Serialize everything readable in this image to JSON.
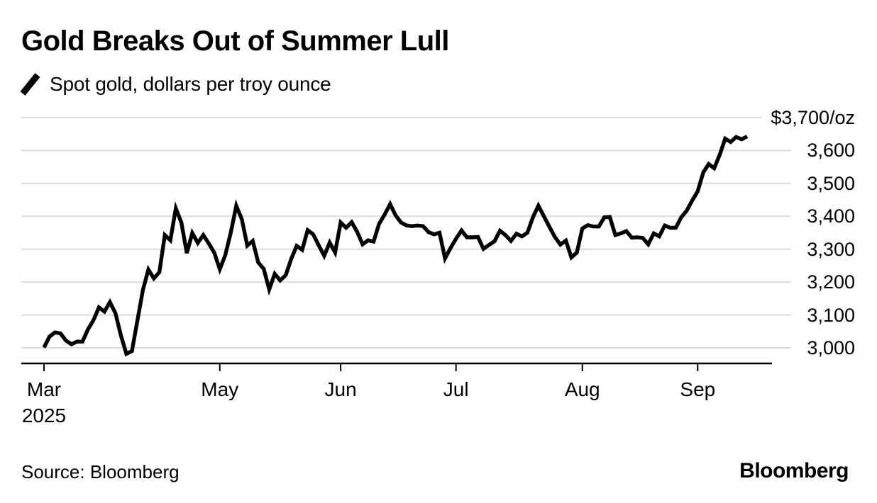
{
  "title": "Gold Breaks Out of Summer Lull",
  "legend": {
    "label": "Spot gold, dollars per troy ounce"
  },
  "source": "Source: Bloomberg",
  "brand": "Bloomberg",
  "colors": {
    "line": "#000000",
    "grid": "#dcdcdc",
    "axis": "#000000",
    "background": "#ffffff",
    "text": "#000000"
  },
  "chart_data": {
    "type": "line",
    "title": "Gold Breaks Out of Summer Lull",
    "series_label": "Spot gold, dollars per troy ounce",
    "unit": "dollars per troy ounce",
    "grid": "horizontal",
    "ylim": [
      2950,
      3700
    ],
    "yticks": [
      3000,
      3100,
      3200,
      3300,
      3400,
      3500,
      3600,
      3700
    ],
    "ytick_labels": [
      "3,000",
      "3,100",
      "3,200",
      "3,300",
      "3,400",
      "3,500",
      "3,600",
      "$3,700/oz"
    ],
    "xticks": [
      0,
      32,
      54,
      75,
      98,
      119
    ],
    "xtick_labels": [
      "Mar",
      "May",
      "Jun",
      "Jul",
      "Aug",
      "Sep"
    ],
    "xtick_sublabels": [
      "2025",
      "",
      "",
      "",
      "",
      ""
    ],
    "x": [
      "2025-03-17",
      "2025-03-18",
      "2025-03-19",
      "2025-03-20",
      "2025-03-21",
      "2025-03-24",
      "2025-03-25",
      "2025-03-26",
      "2025-03-27",
      "2025-03-28",
      "2025-03-31",
      "2025-04-01",
      "2025-04-02",
      "2025-04-03",
      "2025-04-04",
      "2025-04-07",
      "2025-04-08",
      "2025-04-09",
      "2025-04-10",
      "2025-04-11",
      "2025-04-14",
      "2025-04-15",
      "2025-04-16",
      "2025-04-17",
      "2025-04-21",
      "2025-04-22",
      "2025-04-23",
      "2025-04-24",
      "2025-04-25",
      "2025-04-28",
      "2025-04-29",
      "2025-04-30",
      "2025-05-01",
      "2025-05-02",
      "2025-05-05",
      "2025-05-06",
      "2025-05-07",
      "2025-05-08",
      "2025-05-09",
      "2025-05-12",
      "2025-05-13",
      "2025-05-14",
      "2025-05-15",
      "2025-05-16",
      "2025-05-19",
      "2025-05-20",
      "2025-05-21",
      "2025-05-22",
      "2025-05-23",
      "2025-05-26",
      "2025-05-27",
      "2025-05-28",
      "2025-05-29",
      "2025-05-30",
      "2025-06-02",
      "2025-06-03",
      "2025-06-04",
      "2025-06-05",
      "2025-06-06",
      "2025-06-09",
      "2025-06-10",
      "2025-06-11",
      "2025-06-12",
      "2025-06-13",
      "2025-06-16",
      "2025-06-17",
      "2025-06-18",
      "2025-06-19",
      "2025-06-20",
      "2025-06-23",
      "2025-06-24",
      "2025-06-25",
      "2025-06-26",
      "2025-06-27",
      "2025-06-30",
      "2025-07-01",
      "2025-07-02",
      "2025-07-03",
      "2025-07-04",
      "2025-07-07",
      "2025-07-08",
      "2025-07-09",
      "2025-07-10",
      "2025-07-11",
      "2025-07-14",
      "2025-07-15",
      "2025-07-16",
      "2025-07-17",
      "2025-07-18",
      "2025-07-21",
      "2025-07-22",
      "2025-07-23",
      "2025-07-24",
      "2025-07-25",
      "2025-07-28",
      "2025-07-29",
      "2025-07-30",
      "2025-07-31",
      "2025-08-01",
      "2025-08-04",
      "2025-08-05",
      "2025-08-06",
      "2025-08-07",
      "2025-08-08",
      "2025-08-11",
      "2025-08-12",
      "2025-08-13",
      "2025-08-14",
      "2025-08-15",
      "2025-08-18",
      "2025-08-19",
      "2025-08-20",
      "2025-08-21",
      "2025-08-22",
      "2025-08-25",
      "2025-08-26",
      "2025-08-27",
      "2025-08-28",
      "2025-08-29",
      "2025-09-01",
      "2025-09-02",
      "2025-09-03",
      "2025-09-04",
      "2025-09-05",
      "2025-09-08",
      "2025-09-09",
      "2025-09-10",
      "2025-09-11",
      "2025-09-12"
    ],
    "values": [
      3001,
      3034,
      3047,
      3044,
      3022,
      3011,
      3019,
      3019,
      3056,
      3084,
      3123,
      3110,
      3139,
      3106,
      3038,
      2982,
      2990,
      3082,
      3176,
      3238,
      3211,
      3230,
      3343,
      3327,
      3424,
      3381,
      3288,
      3349,
      3319,
      3343,
      3317,
      3289,
      3239,
      3282,
      3350,
      3432,
      3392,
      3311,
      3325,
      3260,
      3240,
      3178,
      3225,
      3205,
      3221,
      3270,
      3310,
      3298,
      3358,
      3345,
      3312,
      3280,
      3320,
      3290,
      3381,
      3365,
      3382,
      3353,
      3315,
      3327,
      3323,
      3377,
      3405,
      3437,
      3403,
      3381,
      3372,
      3370,
      3372,
      3370,
      3352,
      3345,
      3350,
      3272,
      3303,
      3332,
      3357,
      3336,
      3336,
      3337,
      3301,
      3313,
      3324,
      3356,
      3343,
      3325,
      3347,
      3339,
      3350,
      3397,
      3432,
      3400,
      3368,
      3337,
      3314,
      3326,
      3275,
      3290,
      3363,
      3373,
      3369,
      3369,
      3397,
      3398,
      3343,
      3348,
      3355,
      3335,
      3336,
      3334,
      3315,
      3348,
      3339,
      3372,
      3365,
      3365,
      3397,
      3417,
      3448,
      3476,
      3533,
      3559,
      3546,
      3587,
      3636,
      3626,
      3641,
      3634,
      3643
    ]
  }
}
